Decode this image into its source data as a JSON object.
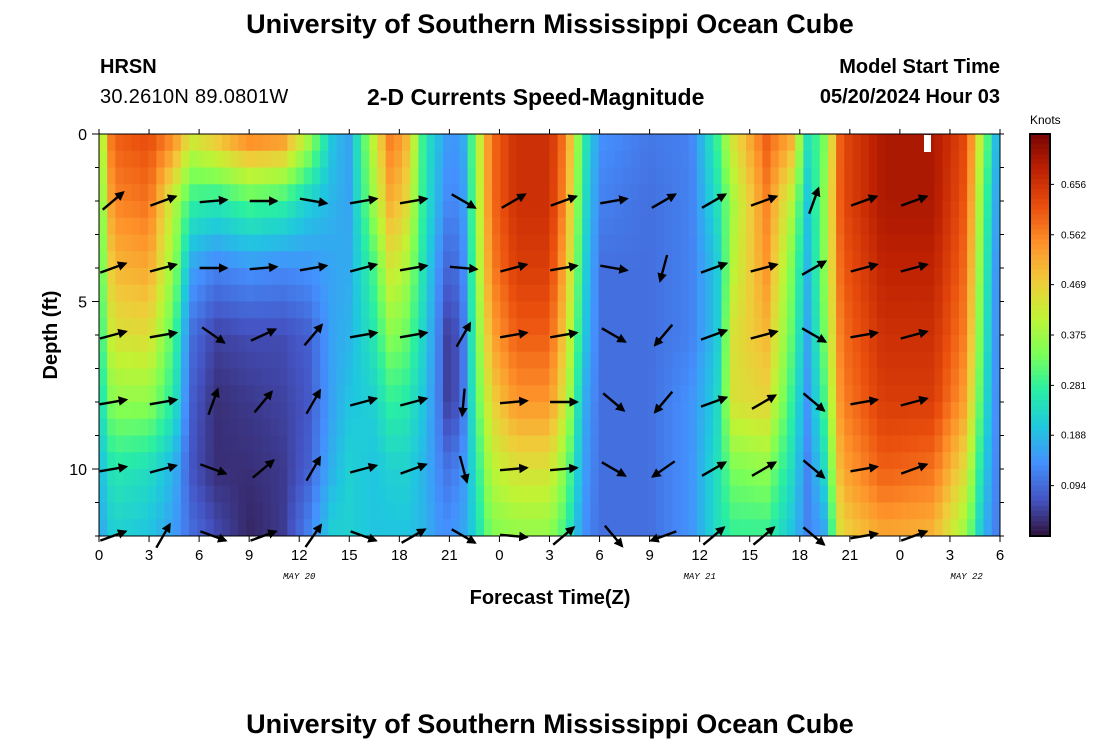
{
  "header": {
    "title": "University of Southern Mississippi Ocean Cube",
    "station": "HRSN",
    "coordinates": "30.2610N  89.0801W",
    "subtitle": "2-D Currents Speed-Magnitude",
    "model_start_label": "Model Start Time",
    "model_start_value": "05/20/2024 Hour 03",
    "footer_title": "University of Southern Mississippi Ocean Cube"
  },
  "colorbar": {
    "units": "Knots",
    "ticks": [
      "0.656",
      "0.562",
      "0.469",
      "0.375",
      "0.281",
      "0.188",
      "0.094"
    ],
    "range": [
      0.0,
      0.75
    ],
    "colors": [
      "#30123b",
      "#4454c4",
      "#4490fe",
      "#1fc8de",
      "#29efa2",
      "#7dff56",
      "#c1f334",
      "#f1ca3a",
      "#fe922a",
      "#ea4f0d",
      "#be2102",
      "#7a0403"
    ]
  },
  "chart_data": {
    "type": "heatmap",
    "xlabel": "Forecast Time(Z)",
    "ylabel": "Depth (ft)",
    "x_tick_labels": [
      "0",
      "3",
      "6",
      "9",
      "12",
      "15",
      "18",
      "21",
      "0",
      "3",
      "6",
      "9",
      "12",
      "15",
      "18",
      "21",
      "0",
      "3",
      "6"
    ],
    "date_labels": [
      "MAY 20",
      "MAY 21",
      "MAY 22"
    ],
    "y_tick_labels": [
      "0",
      "5",
      "10"
    ],
    "xlim_hours": [
      0,
      54
    ],
    "ylim_ft": [
      0,
      12
    ],
    "depths_ft": [
      0,
      2,
      4,
      6,
      8,
      10,
      12
    ],
    "speed_profile": [
      [
        0,
        [
          0.28,
          0.26,
          0.24,
          0.22,
          0.2,
          0.17,
          0.15
        ]
      ],
      [
        0.5,
        [
          0.55,
          0.5,
          0.45,
          0.4,
          0.33,
          0.24,
          0.2
        ]
      ],
      [
        1,
        [
          0.6,
          0.56,
          0.5,
          0.44,
          0.36,
          0.26,
          0.22
        ]
      ],
      [
        3,
        [
          0.62,
          0.58,
          0.52,
          0.45,
          0.36,
          0.24,
          0.2
        ]
      ],
      [
        4.5,
        [
          0.56,
          0.4,
          0.36,
          0.3,
          0.26,
          0.18,
          0.15
        ]
      ],
      [
        5.5,
        [
          0.44,
          0.28,
          0.16,
          0.1,
          0.08,
          0.07,
          0.1
        ]
      ],
      [
        7,
        [
          0.5,
          0.26,
          0.12,
          0.05,
          0.03,
          0.03,
          0.06
        ]
      ],
      [
        9,
        [
          0.58,
          0.3,
          0.14,
          0.06,
          0.04,
          0.03,
          0.02
        ]
      ],
      [
        11,
        [
          0.56,
          0.28,
          0.13,
          0.06,
          0.05,
          0.04,
          0.04
        ]
      ],
      [
        12.5,
        [
          0.4,
          0.22,
          0.14,
          0.08,
          0.07,
          0.08,
          0.12
        ]
      ],
      [
        14,
        [
          0.2,
          0.18,
          0.16,
          0.16,
          0.16,
          0.18,
          0.22
        ]
      ],
      [
        15,
        [
          0.16,
          0.16,
          0.17,
          0.18,
          0.2,
          0.22,
          0.22
        ]
      ],
      [
        16.5,
        [
          0.42,
          0.38,
          0.3,
          0.26,
          0.22,
          0.2,
          0.2
        ]
      ],
      [
        17.5,
        [
          0.58,
          0.52,
          0.44,
          0.36,
          0.28,
          0.22,
          0.2
        ]
      ],
      [
        18.5,
        [
          0.5,
          0.45,
          0.38,
          0.32,
          0.26,
          0.22,
          0.2
        ]
      ],
      [
        19.5,
        [
          0.26,
          0.26,
          0.24,
          0.22,
          0.2,
          0.18,
          0.18
        ]
      ],
      [
        20.5,
        [
          0.18,
          0.16,
          0.12,
          0.1,
          0.1,
          0.12,
          0.14
        ]
      ],
      [
        21,
        [
          0.14,
          0.12,
          0.08,
          0.03,
          0.03,
          0.1,
          0.14
        ]
      ],
      [
        21.8,
        [
          0.16,
          0.14,
          0.12,
          0.1,
          0.1,
          0.14,
          0.16
        ]
      ],
      [
        22.5,
        [
          0.34,
          0.33,
          0.32,
          0.3,
          0.28,
          0.24,
          0.22
        ]
      ],
      [
        23.5,
        [
          0.58,
          0.58,
          0.56,
          0.52,
          0.46,
          0.4,
          0.34
        ]
      ],
      [
        25,
        [
          0.66,
          0.66,
          0.64,
          0.6,
          0.54,
          0.44,
          0.36
        ]
      ],
      [
        27,
        [
          0.66,
          0.66,
          0.64,
          0.6,
          0.54,
          0.44,
          0.36
        ]
      ],
      [
        28,
        [
          0.56,
          0.54,
          0.5,
          0.46,
          0.42,
          0.34,
          0.28
        ]
      ],
      [
        29,
        [
          0.28,
          0.26,
          0.24,
          0.22,
          0.18,
          0.16,
          0.14
        ]
      ],
      [
        30,
        [
          0.14,
          0.12,
          0.1,
          0.1,
          0.1,
          0.1,
          0.1
        ]
      ],
      [
        33,
        [
          0.11,
          0.1,
          0.1,
          0.1,
          0.1,
          0.1,
          0.1
        ]
      ],
      [
        35.5,
        [
          0.12,
          0.12,
          0.12,
          0.12,
          0.14,
          0.14,
          0.14
        ]
      ],
      [
        37,
        [
          0.28,
          0.24,
          0.2,
          0.2,
          0.22,
          0.24,
          0.24
        ]
      ],
      [
        38,
        [
          0.44,
          0.38,
          0.4,
          0.44,
          0.44,
          0.34,
          0.28
        ]
      ],
      [
        40,
        [
          0.6,
          0.56,
          0.54,
          0.5,
          0.46,
          0.36,
          0.28
        ]
      ],
      [
        41.5,
        [
          0.52,
          0.4,
          0.34,
          0.32,
          0.28,
          0.24,
          0.2
        ]
      ],
      [
        42.5,
        [
          0.24,
          0.2,
          0.18,
          0.16,
          0.14,
          0.12,
          0.12
        ]
      ],
      [
        43.5,
        [
          0.34,
          0.36,
          0.36,
          0.34,
          0.3,
          0.24,
          0.16
        ]
      ],
      [
        44.5,
        [
          0.62,
          0.62,
          0.6,
          0.58,
          0.56,
          0.52,
          0.46
        ]
      ],
      [
        47,
        [
          0.7,
          0.7,
          0.68,
          0.66,
          0.64,
          0.6,
          0.52
        ]
      ],
      [
        50,
        [
          0.7,
          0.7,
          0.68,
          0.66,
          0.64,
          0.58,
          0.5
        ]
      ],
      [
        52,
        [
          0.62,
          0.6,
          0.58,
          0.56,
          0.52,
          0.44,
          0.36
        ]
      ],
      [
        53,
        [
          0.36,
          0.32,
          0.3,
          0.28,
          0.26,
          0.22,
          0.18
        ]
      ],
      [
        54,
        [
          0.14,
          0.12,
          0.1,
          0.1,
          0.1,
          0.1,
          0.1
        ]
      ]
    ],
    "current_arrows_depth_ft": [
      2,
      4,
      6,
      8,
      10,
      12
    ],
    "current_arrows": [
      {
        "hour": 0,
        "angles_deg": [
          40,
          20,
          15,
          10,
          10,
          20
        ]
      },
      {
        "hour": 3,
        "angles_deg": [
          20,
          15,
          10,
          10,
          15,
          60
        ]
      },
      {
        "hour": 6,
        "angles_deg": [
          5,
          0,
          -35,
          70,
          -20,
          -20
        ]
      },
      {
        "hour": 9,
        "angles_deg": [
          0,
          5,
          25,
          50,
          40,
          20
        ]
      },
      {
        "hour": 12,
        "angles_deg": [
          -10,
          10,
          50,
          60,
          60,
          55
        ]
      },
      {
        "hour": 15,
        "angles_deg": [
          10,
          15,
          10,
          15,
          15,
          -20
        ]
      },
      {
        "hour": 18,
        "angles_deg": [
          10,
          10,
          10,
          15,
          20,
          30
        ]
      },
      {
        "hour": 21,
        "angles_deg": [
          -30,
          -5,
          60,
          -95,
          -75,
          -30
        ]
      },
      {
        "hour": 24,
        "angles_deg": [
          30,
          15,
          10,
          5,
          5,
          -5
        ]
      },
      {
        "hour": 27,
        "angles_deg": [
          20,
          10,
          10,
          0,
          5,
          40
        ]
      },
      {
        "hour": 30,
        "angles_deg": [
          10,
          -10,
          -30,
          -40,
          -30,
          -50
        ]
      },
      {
        "hour": 33,
        "angles_deg": [
          30,
          -105,
          -130,
          -130,
          -145,
          200
        ]
      },
      {
        "hour": 36,
        "angles_deg": [
          30,
          20,
          20,
          20,
          30,
          40
        ]
      },
      {
        "hour": 39,
        "angles_deg": [
          20,
          15,
          15,
          30,
          30,
          40
        ]
      },
      {
        "hour": 42,
        "angles_deg": [
          70,
          30,
          -30,
          -40,
          -40,
          -40
        ]
      },
      {
        "hour": 45,
        "angles_deg": [
          20,
          15,
          10,
          10,
          10,
          10
        ]
      },
      {
        "hour": 48,
        "angles_deg": [
          20,
          15,
          15,
          15,
          20,
          20
        ]
      }
    ]
  }
}
